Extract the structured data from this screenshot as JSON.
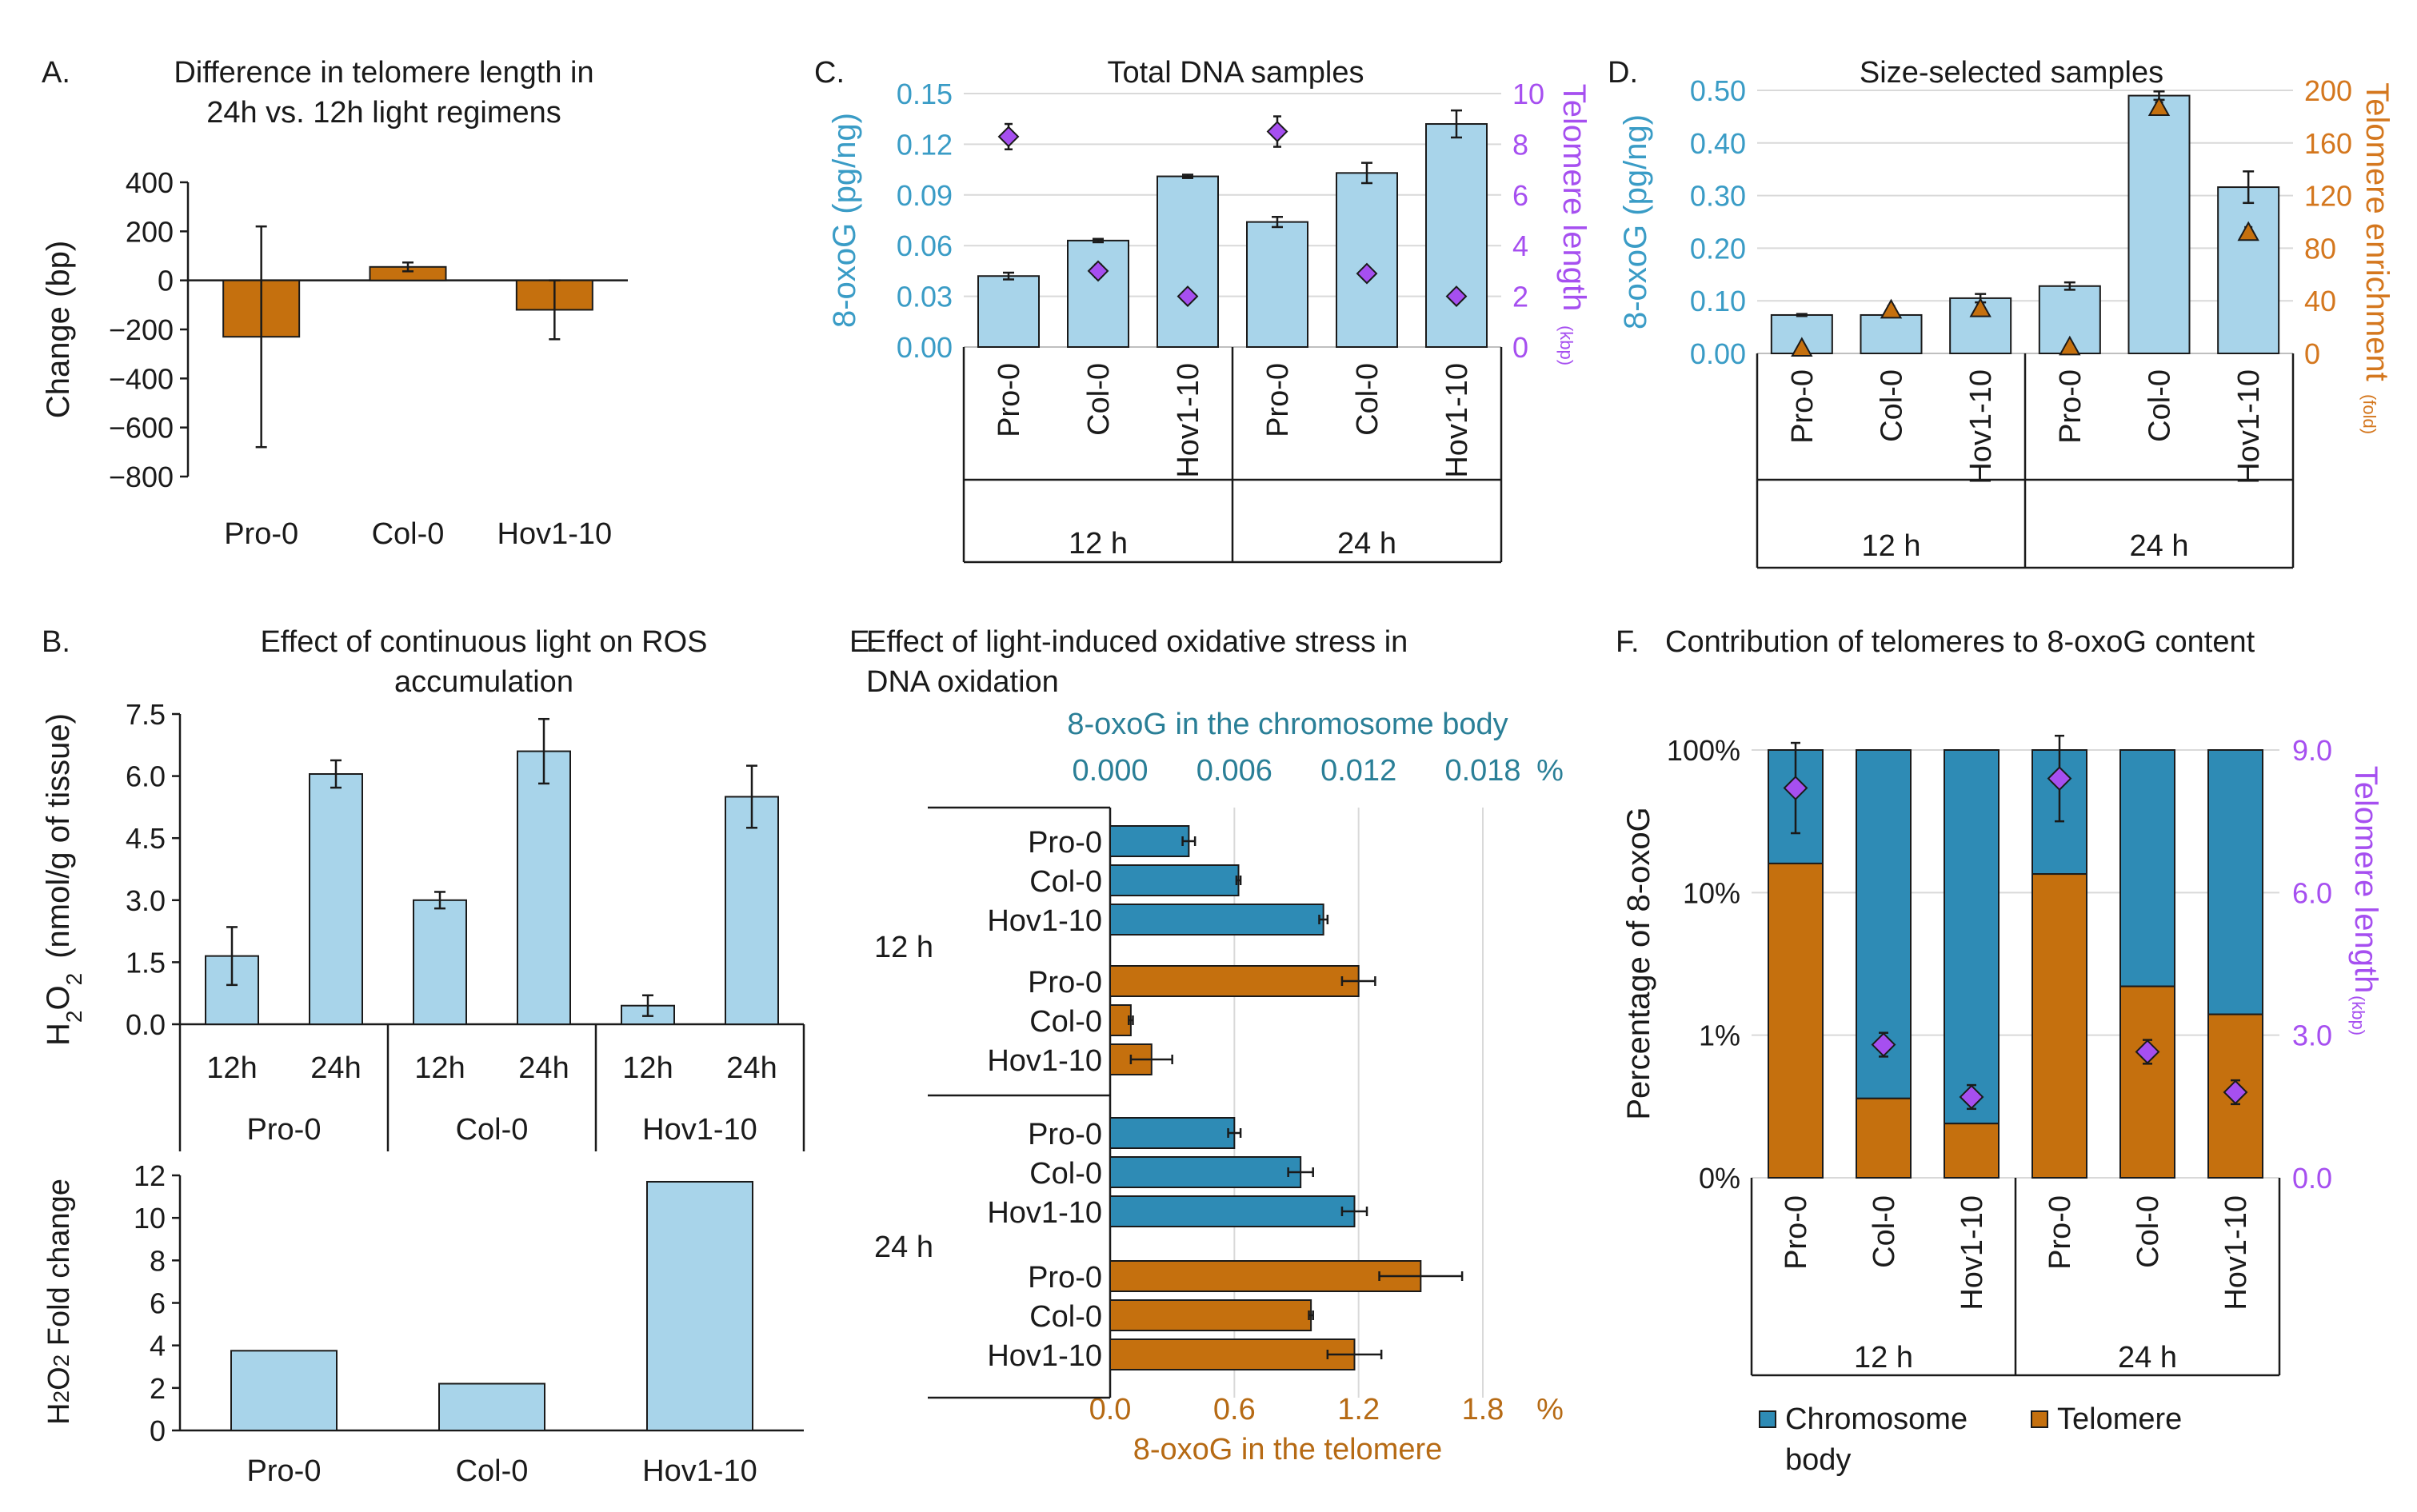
{
  "colors": {
    "orange": "#c5700e",
    "light_blue": "#a8d4ea",
    "teal": "#2e8bb5",
    "purple": "#a64ff0",
    "axis_blue": "#3a9cc6",
    "axis_orange": "#d4771e",
    "gray": "#bfbfbf",
    "text": "#1a1a1a"
  },
  "chart_data": [
    {
      "id": "A",
      "type": "bar",
      "label": "A.",
      "title_lines": [
        "Difference in telomere length in",
        "24h vs. 12h light regimens"
      ],
      "ylabel": "Change (bp)",
      "ylim": [
        -800,
        400
      ],
      "yticks": [
        400,
        200,
        0,
        -200,
        -400,
        -600,
        -800
      ],
      "ytick_labels": [
        "400",
        "200",
        "0",
        "−200",
        "−400",
        "−600",
        "−800"
      ],
      "categories": [
        "Pro-0",
        "Col-0",
        "Hov1-10"
      ],
      "values": [
        -230,
        55,
        -120
      ],
      "errors": [
        450,
        18,
        120
      ]
    },
    {
      "id": "B1",
      "type": "bar",
      "label": "B.",
      "title_lines": [
        "Effect of continuous light on ROS",
        "accumulation"
      ],
      "ylabel_main": "H",
      "ylabel_sub1": "2",
      "ylabel_mid": "O",
      "ylabel_sub2": "2",
      "ylabel_rest": "(nmol/g of tissue)",
      "ylim": [
        0,
        7.5
      ],
      "yticks": [
        0,
        1.5,
        3,
        4.5,
        6,
        7.5
      ],
      "ytick_labels": [
        "0.0",
        "1.5",
        "3.0",
        "4.5",
        "6.0",
        "7.5"
      ],
      "categories": [
        "12h",
        "24h",
        "12h",
        "24h",
        "12h",
        "24h"
      ],
      "groups": [
        "Pro-0",
        "Col-0",
        "Hov1-10"
      ],
      "values": [
        1.65,
        6.05,
        3.0,
        6.6,
        0.45,
        5.5
      ],
      "errors": [
        0.7,
        0.33,
        0.2,
        0.78,
        0.25,
        0.75
      ]
    },
    {
      "id": "B2",
      "type": "bar",
      "ylabel_main": "H",
      "ylabel_sub1": "2",
      "ylabel_mid": "O",
      "ylabel_sub2": "2",
      "ylabel_rest": " Fold change",
      "ylim": [
        0,
        12
      ],
      "yticks": [
        0,
        2,
        4,
        6,
        8,
        10,
        12
      ],
      "ytick_labels": [
        "0",
        "2",
        "4",
        "6",
        "8",
        "10",
        "12"
      ],
      "categories": [
        "Pro-0",
        "Col-0",
        "Hov1-10"
      ],
      "values": [
        3.75,
        2.2,
        11.7
      ]
    },
    {
      "id": "C",
      "type": "bar",
      "label": "C.",
      "title": "Total DNA samples",
      "ylabel_left": "8-oxoG (pg/ng)",
      "ylabel_right": "Telomere length",
      "ylabel_right_unit": "(kbp)",
      "ylim_left": [
        0,
        0.15
      ],
      "yticks_left": [
        0,
        0.03,
        0.06,
        0.09,
        0.12,
        0.15
      ],
      "ytick_labels_left": [
        "0.00",
        "0.03",
        "0.06",
        "0.09",
        "0.12",
        "0.15"
      ],
      "ylim_right": [
        0,
        10
      ],
      "yticks_right": [
        0,
        2,
        4,
        6,
        8,
        10
      ],
      "ytick_labels_right": [
        "0",
        "2",
        "4",
        "6",
        "8",
        "10"
      ],
      "categories": [
        "Pro-0",
        "Col-0",
        "Hov1-10",
        "Pro-0",
        "Col-0",
        "Hov1-10"
      ],
      "groups": [
        "12 h",
        "24 h"
      ],
      "bar_values": [
        0.042,
        0.063,
        0.101,
        0.074,
        0.103,
        0.132
      ],
      "bar_errors": [
        0.002,
        0.001,
        0.001,
        0.003,
        0.006,
        0.008
      ],
      "marker_values": [
        8.3,
        3.0,
        2.0,
        8.5,
        2.9,
        2.0
      ],
      "marker_errors": [
        0.5,
        0.25,
        0.15,
        0.6,
        0.2,
        0.15
      ]
    },
    {
      "id": "D",
      "type": "bar",
      "label": "D.",
      "title": "Size-selected samples",
      "ylabel_left": "8-oxoG (pg/ng)",
      "ylabel_right": "Telomere enrichment",
      "ylabel_right_unit": "(fold)",
      "ylim_left": [
        0,
        0.5
      ],
      "yticks_left": [
        0,
        0.1,
        0.2,
        0.3,
        0.4,
        0.5
      ],
      "ytick_labels_left": [
        "0.00",
        "0.10",
        "0.20",
        "0.30",
        "0.40",
        "0.50"
      ],
      "ylim_right": [
        0,
        200
      ],
      "yticks_right": [
        0,
        40,
        80,
        120,
        160,
        200
      ],
      "ytick_labels_right": [
        "0",
        "40",
        "80",
        "120",
        "160",
        "200"
      ],
      "categories": [
        "Pro-0",
        "Col-0",
        "Hov1-10",
        "Pro-0",
        "Col-0",
        "Hov1-10"
      ],
      "groups": [
        "12 h",
        "24 h"
      ],
      "bar_values": [
        0.073,
        0.073,
        0.105,
        0.128,
        0.49,
        0.316
      ],
      "bar_errors": [
        0.002,
        0.002,
        0.008,
        0.007,
        0.008,
        0.03
      ],
      "marker_values": [
        4,
        33,
        34,
        5,
        187,
        92
      ],
      "marker_errors": [
        1,
        3,
        3,
        1,
        4,
        4
      ]
    },
    {
      "id": "E",
      "type": "bar",
      "orientation": "horizontal",
      "label": "E.",
      "title_lines": [
        "Effect of light-induced oxidative stress in",
        "DNA oxidation"
      ],
      "top_axis_label": "8-oxoG in the chromosome body",
      "top_ticks": [
        "0.000",
        "0.006",
        "0.012",
        "0.018"
      ],
      "top_unit": "%",
      "bottom_axis_label": "8-oxoG in the telomere",
      "bottom_ticks": [
        "0.0",
        "0.6",
        "1.2",
        "1.8"
      ],
      "bottom_unit": "%",
      "xlim_bottom": [
        0,
        1.8
      ],
      "groups": [
        "12 h",
        "24 h"
      ],
      "categories": [
        "Pro-0",
        "Col-0",
        "Hov1-10",
        "Pro-0",
        "Col-0",
        "Hov1-10",
        "Pro-0",
        "Col-0",
        "Hov1-10",
        "Pro-0",
        "Col-0",
        "Hov1-10"
      ],
      "series_kind": [
        "body",
        "body",
        "body",
        "telomere",
        "telomere",
        "telomere",
        "body",
        "body",
        "body",
        "telomere",
        "telomere",
        "telomere"
      ],
      "values": [
        0.38,
        0.62,
        1.03,
        1.2,
        0.1,
        0.2,
        0.6,
        0.92,
        1.18,
        1.5,
        0.97,
        1.18
      ],
      "errors": [
        0.03,
        0.01,
        0.02,
        0.08,
        0.01,
        0.1,
        0.03,
        0.06,
        0.06,
        0.2,
        0.01,
        0.13
      ]
    },
    {
      "id": "F",
      "type": "bar",
      "stacked": true,
      "label": "F.",
      "title": "Contribution of telomeres to 8-oxoG content",
      "ylabel_left": "Percentage of 8-oxoG",
      "ytick_labels_left": [
        "0%",
        "1%",
        "10%",
        "100%"
      ],
      "ylabel_right": "Telomere length",
      "ylabel_right_unit": "(kbp)",
      "ylim_right": [
        0,
        9
      ],
      "yticks_right": [
        0,
        3,
        6,
        9
      ],
      "ytick_labels_right": [
        "0.0",
        "3.0",
        "6.0",
        "9.0"
      ],
      "categories": [
        "Pro-0",
        "Col-0",
        "Hov1-10",
        "Pro-0",
        "Col-0",
        "Hov1-10"
      ],
      "groups": [
        "12 h",
        "24 h"
      ],
      "telomere_percent": [
        16,
        0.36,
        0.24,
        13.5,
        2.2,
        1.4
      ],
      "marker_values": [
        8.2,
        2.8,
        1.7,
        8.4,
        2.65,
        1.8
      ],
      "marker_errors": [
        0.95,
        0.25,
        0.25,
        0.9,
        0.25,
        0.25
      ],
      "legend": [
        "Chromosome",
        "body",
        "Telomere"
      ]
    }
  ]
}
